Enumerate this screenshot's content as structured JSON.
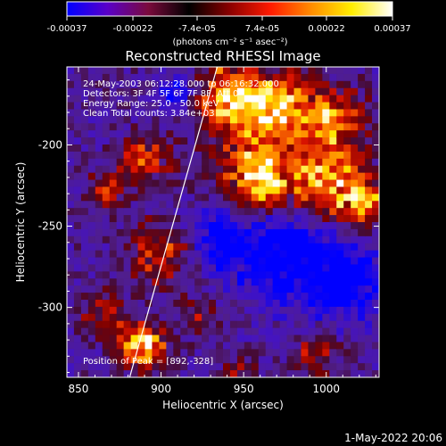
{
  "colorbar": {
    "tick_labels": [
      "-0.00037",
      "-0.00022",
      "-7.4e-05",
      "7.4e-05",
      "0.00022",
      "0.00037"
    ],
    "tick_values": [
      -0.00037,
      -0.00022,
      -7.4e-05,
      7.4e-05,
      0.00022,
      0.00037
    ],
    "range": [
      -0.00037,
      0.00037
    ],
    "units_label": "(photons cm⁻² s⁻¹ asec⁻²)",
    "stops": [
      "#0000ff",
      "#5a00c8",
      "#7a0a3c",
      "#000000",
      "#8a0000",
      "#ff1a00",
      "#ff8c00",
      "#ffee00",
      "#ffffff"
    ]
  },
  "chart_data": {
    "type": "heatmap",
    "title": "Reconstructed RHESSI Image",
    "xlabel": "Heliocentric X (arcsec)",
    "ylabel": "Heliocentric Y (arcsec)",
    "xlim": [
      843,
      1032
    ],
    "ylim": [
      -343,
      -152
    ],
    "x_ticks": [
      850,
      900,
      950,
      1000
    ],
    "y_ticks": [
      -200,
      -250,
      -300
    ],
    "info_lines": [
      "24-May-2003 06:12:28.000 to 06:16:32.000",
      "Detectors: 3F 4F 5F 6F 7F 8F, Att 0",
      "Energy Range: 25.0 - 50.0 keV",
      "Clean     Total counts: 3.84e+03"
    ],
    "peak_label": "Position of Peak = [892,-328]",
    "peak": [
      892,
      -328
    ],
    "limb_line": [
      [
        881,
        -343
      ],
      [
        934,
        -152
      ]
    ]
  },
  "footer": {
    "date": "1-May-2022 20:06"
  }
}
